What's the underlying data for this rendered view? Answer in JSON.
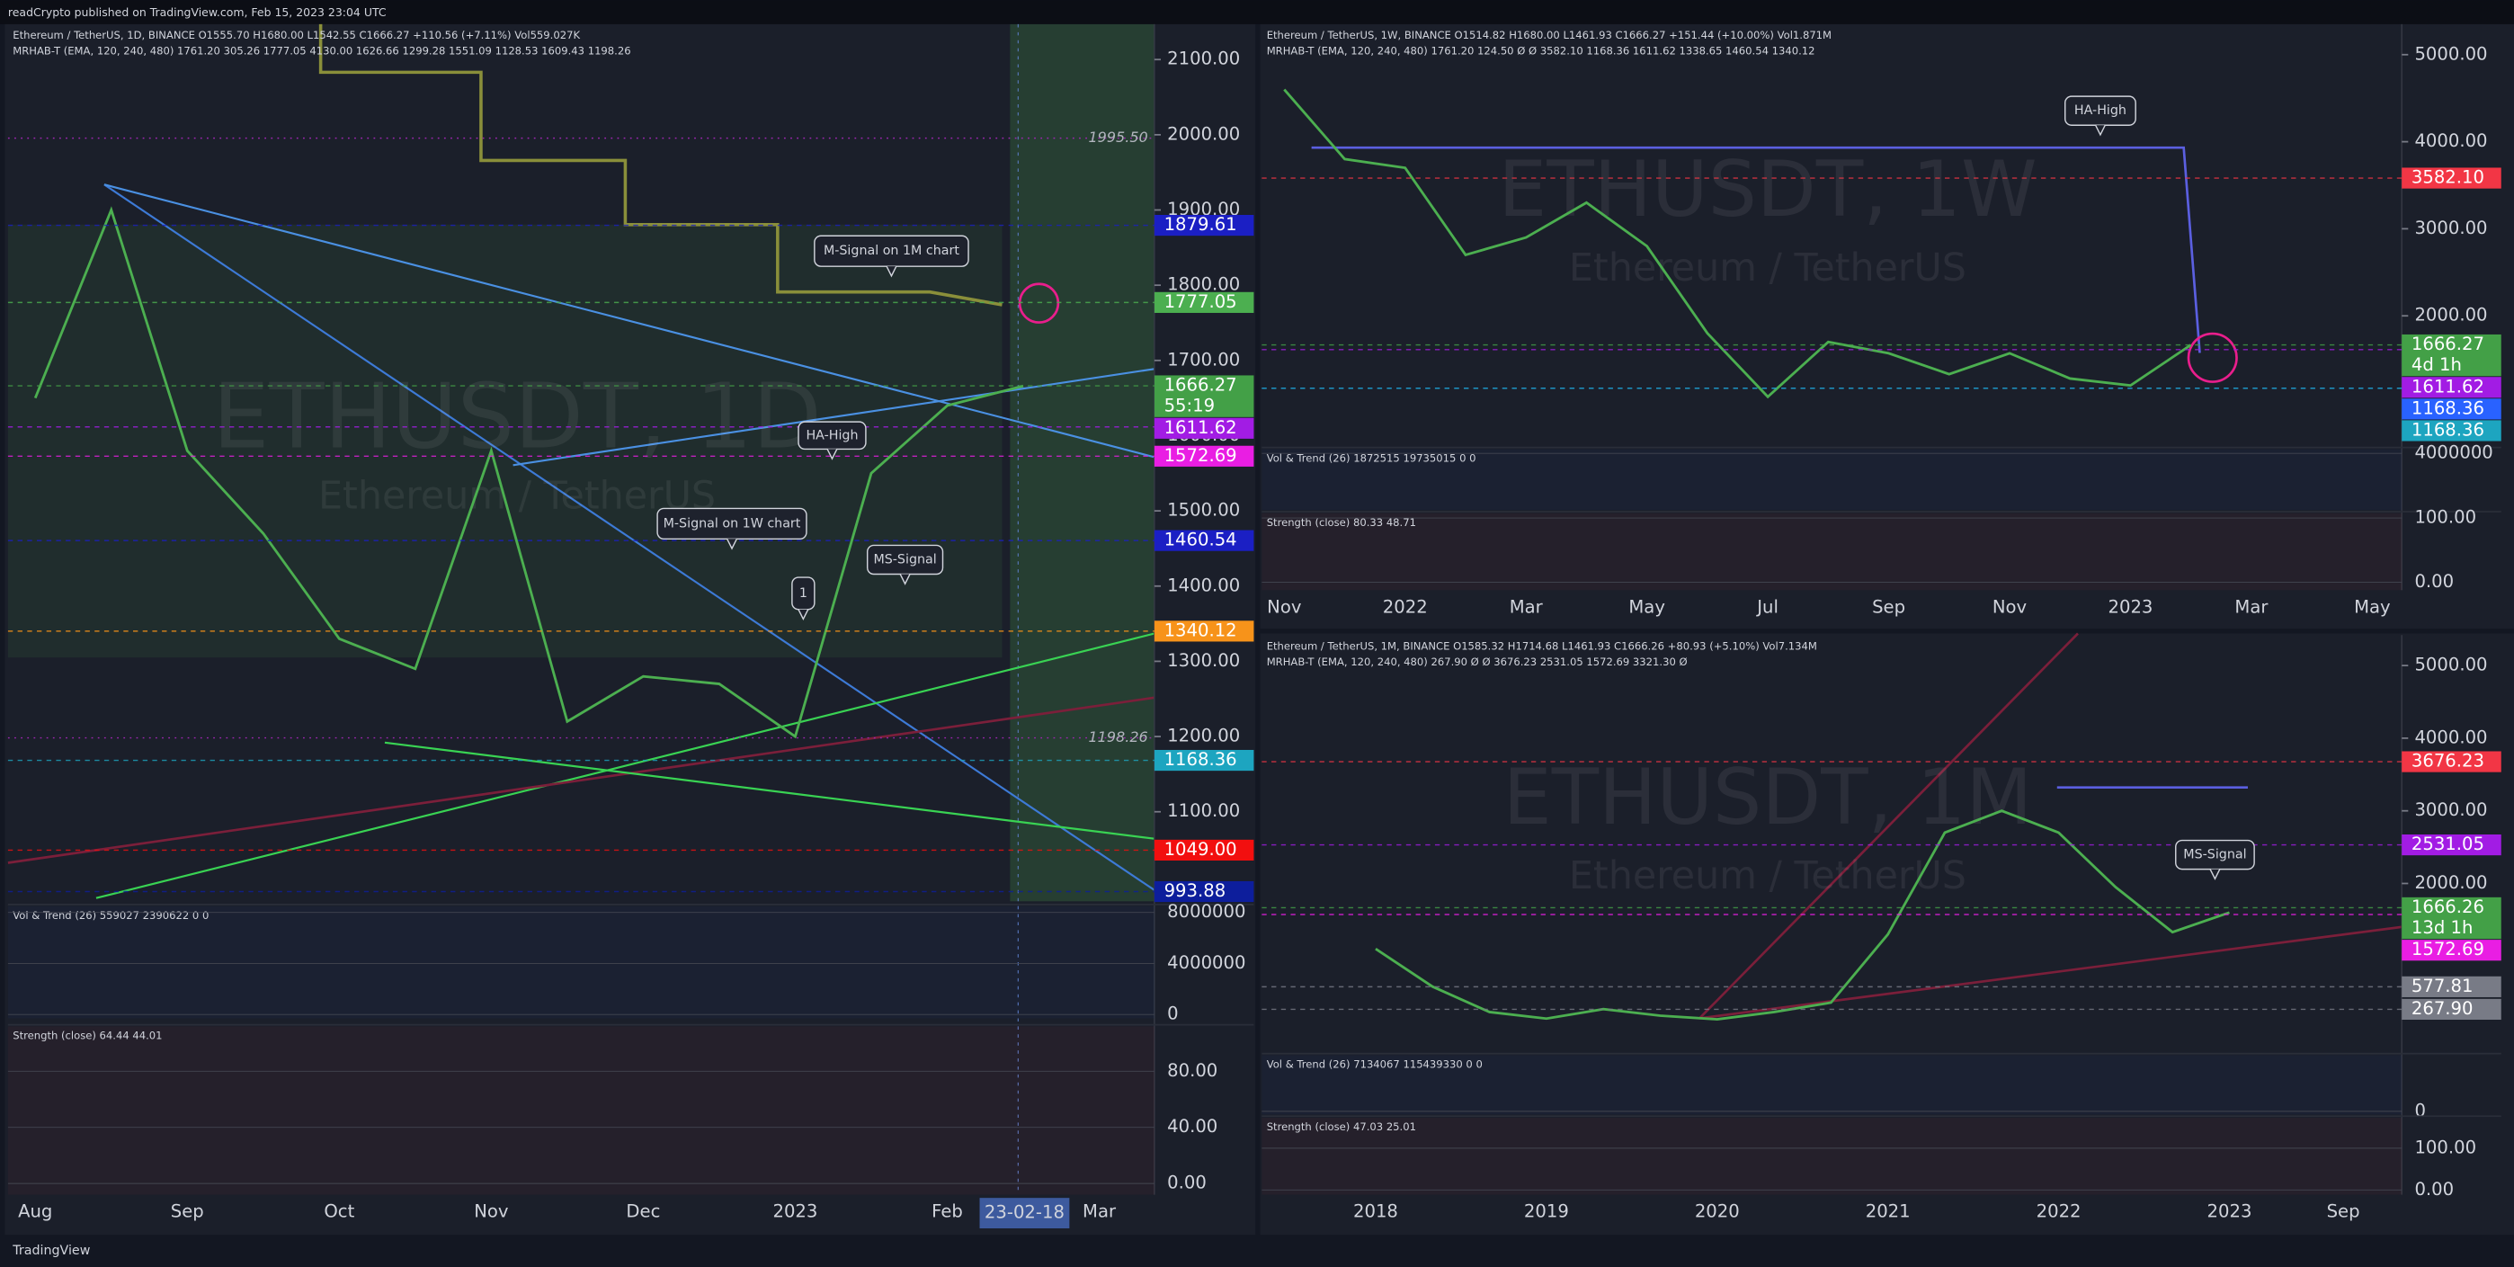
{
  "page": {
    "publisher_line": "readCrypto published on TradingView.com, Feb 15, 2023 23:04 UTC",
    "footer": "TradingView"
  },
  "chart_data": [
    {
      "type": "line",
      "color": "#4caf50",
      "title": "Ethereum / TetherUS, 1D, BINANCE O1555.70 H1680.00 L1542.55 C1666.27 +110.56 (+7.11%) Vol559.027K",
      "subtitle": "MRHAB-T (EMA, 120, 240, 480) 1761.20 305.26 1777.05 4130.00 1626.66 1299.28 1551.09 1128.53 1609.43 1198.26",
      "watermark": "ETHUSDT, 1D",
      "watermark_subtitle": "Ethereum / TetherUS",
      "categories": [
        "Aug",
        null,
        "Sep",
        null,
        "Oct",
        null,
        "Nov",
        null,
        "Dec",
        null,
        "2023",
        null,
        "Feb",
        null,
        "Mar"
      ],
      "values": [
        1650,
        1900,
        1580,
        1470,
        1330,
        1290,
        1580,
        1220,
        1280,
        1270,
        1200,
        1550,
        1640,
        1666,
        null
      ],
      "ylim": [
        981,
        2147
      ],
      "yticks": [
        {
          "value": 1100,
          "label": "1100.00"
        },
        {
          "value": 1200,
          "label": "1200.00"
        },
        {
          "value": 1300,
          "label": "1300.00"
        },
        {
          "value": 1400,
          "label": "1400.00"
        },
        {
          "value": 1500,
          "label": "1500.00"
        },
        {
          "value": 1600,
          "label": "1600.00"
        },
        {
          "value": 1700,
          "label": "1700.00"
        },
        {
          "value": 1800,
          "label": "1800.00"
        },
        {
          "value": 1900,
          "label": "1900.00"
        },
        {
          "value": 2000,
          "label": "2000.00"
        },
        {
          "value": 2100,
          "label": "2100.00"
        }
      ],
      "grid": false,
      "price_tags": [
        {
          "price": 1879.61,
          "color": "#1b1fc4"
        },
        {
          "price": 1777.05,
          "color": "#4caf50"
        },
        {
          "price": 1666.27,
          "color": "#43a047",
          "countdown": "55:19"
        },
        {
          "price": 1611.62,
          "color": "#a21ce4"
        },
        {
          "price": 1572.69,
          "color": "#e91ee3"
        },
        {
          "price": 1460.54,
          "color": "#1b1fc4"
        },
        {
          "price": 1340.12,
          "color": "#f7931a"
        },
        {
          "price": 1168.36,
          "color": "#1da5c0"
        },
        {
          "price": {
            "value": 1049,
            "label": "1049.00"
          },
          "color": "#f20f0f"
        },
        {
          "price": 993.88,
          "color": "#0d1e9c"
        }
      ],
      "level_labels": [
        {
          "value": 1995.5,
          "label": "1995.50"
        },
        1198.26
      ],
      "annotations": [
        "M-Signal on 1M chart",
        "HA-High",
        "M-Signal on 1W chart",
        "MS-Signal",
        "1"
      ],
      "crosshair_label": "23-02-18",
      "sub_panes": [
        {
          "title": "Vol & Trend (26) 559027 2390622 0 0",
          "ylim": [
            -300000,
            8500000
          ],
          "yticks": [
            0,
            4000000,
            8000000
          ]
        },
        {
          "title": "Strength (close) 64.44 44.01",
          "ylim": [
            -8,
            112
          ],
          "yticks": [
            {
              "value": 0,
              "label": "0.00"
            },
            {
              "value": 40,
              "label": "40.00"
            },
            {
              "value": 80,
              "label": "80.00"
            }
          ]
        }
      ]
    },
    {
      "type": "line",
      "color": "#4caf50",
      "title": "Ethereum / TetherUS, 1W, BINANCE O1514.82 H1680.00 L1461.93 C1666.27 +151.44 (+10.00%) Vol1.871M",
      "subtitle": "MRHAB-T (EMA, 120, 240, 480) 1761.20 124.50 Ø Ø 3582.10 1168.36 1611.62 1338.65 1460.54 1340.12",
      "watermark": "ETHUSDT, 1W",
      "watermark_subtitle": "Ethereum / TetherUS",
      "categories": [
        "Nov",
        null,
        "2022",
        null,
        "Mar",
        null,
        "May",
        null,
        "Jul",
        null,
        "Sep",
        null,
        "Nov",
        null,
        "2023",
        null,
        "Mar",
        null,
        "May"
      ],
      "values": [
        4600,
        3800,
        3700,
        2700,
        2900,
        3300,
        2800,
        1800,
        1070,
        1700,
        1570,
        1330,
        1570,
        1280,
        1200,
        1666,
        null,
        null,
        null
      ],
      "ylim": [
        506,
        5350
      ],
      "yticks": [
        {
          "value": 2000,
          "label": "2000.00"
        },
        {
          "value": 3000,
          "label": "3000.00"
        },
        {
          "value": 4000,
          "label": "4000.00"
        },
        {
          "value": 5000,
          "label": "5000.00"
        }
      ],
      "grid": false,
      "price_tags": [
        {
          "price": {
            "value": 3582.1,
            "label": "3582.10"
          },
          "color": "#f23645"
        },
        {
          "price": 1666.27,
          "color": "#43a047",
          "countdown": "4d 1h"
        },
        {
          "price": 1611.62,
          "color": "#a21ce4"
        },
        {
          "price": 1168.36,
          "color": "#2962ff"
        },
        {
          "price": 1168.36,
          "color": "#1da5c0"
        }
      ],
      "annotations": [
        "HA-High"
      ],
      "sub_panes": [
        {
          "title": "Vol & Trend (26) 1872515 19735015 0 0",
          "ylim": [
            0,
            4300000
          ],
          "yticks": [
            4000000
          ]
        },
        {
          "title": "Strength (close) 80.33 48.71",
          "ylim": [
            -12.5,
            107.5
          ],
          "yticks": [
            {
              "value": 0,
              "label": "0.00"
            },
            {
              "value": 100,
              "label": "100.00"
            }
          ]
        }
      ]
    },
    {
      "type": "line",
      "color": "#4caf50",
      "title": "Ethereum / TetherUS, 1M, BINANCE O1585.32 H1714.68 L1461.93 C1666.26 +80.93 (+5.10%) Vol7.134M",
      "subtitle": "MRHAB-T (EMA, 120, 240, 480) 267.90 Ø Ø 3676.23 2531.05 1572.69 3321.30 Ø",
      "watermark": "ETHUSDT, 1M",
      "watermark_subtitle": "Ethereum / TetherUS",
      "categories": [
        "2018",
        null,
        null,
        "2019",
        null,
        null,
        "2020",
        null,
        null,
        "2021",
        null,
        null,
        "2022",
        null,
        null,
        "2023",
        null,
        "Sep"
      ],
      "values": [
        1100,
        580,
        230,
        140,
        270,
        180,
        130,
        230,
        360,
        1300,
        2700,
        3000,
        2700,
        1950,
        1330,
        1600,
        null,
        null
      ],
      "ylim": [
        -298,
        5419
      ],
      "yticks": [
        {
          "value": 2000,
          "label": "2000.00"
        },
        {
          "value": 3000,
          "label": "3000.00"
        },
        {
          "value": 4000,
          "label": "4000.00"
        },
        {
          "value": 5000,
          "label": "5000.00"
        }
      ],
      "grid": false,
      "price_tags": [
        {
          "price": 3676.23,
          "color": "#f23645"
        },
        {
          "price": 2531.05,
          "color": "#a21ce4"
        },
        {
          "price": 1666.26,
          "color": "#43a047",
          "countdown": "13d 1h"
        },
        {
          "price": 1572.69,
          "color": "#e91ee3"
        },
        {
          "price": 577.81,
          "color": "#787b86"
        },
        {
          "price": {
            "value": 267.9,
            "label": "267.90"
          },
          "color": "#787b86"
        }
      ],
      "annotations": [
        "MS-Signal"
      ],
      "sub_panes": [
        {
          "title": "Vol & Trend (26) 7134067 115439330 0 0",
          "ylim": [
            -10000000,
            175000000
          ],
          "yticks": [
            0
          ]
        },
        {
          "title": "Strength (close) 47.03 25.01",
          "ylim": [
            -11.5,
            173
          ],
          "yticks": [
            {
              "value": 0,
              "label": "0.00"
            },
            {
              "value": 100,
              "label": "100.00"
            }
          ]
        }
      ]
    }
  ]
}
